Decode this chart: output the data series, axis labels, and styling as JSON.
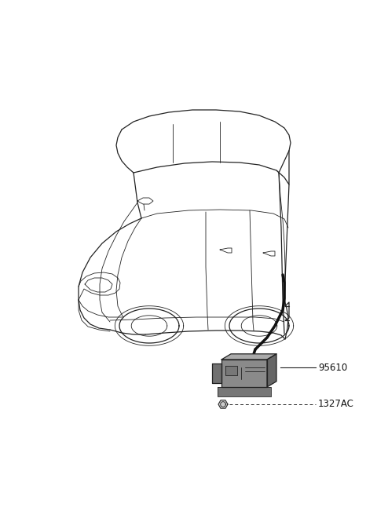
{
  "background_color": "#ffffff",
  "fig_width": 4.8,
  "fig_height": 6.56,
  "dpi": 100,
  "car_color": "#222222",
  "module_fill_front": "#888888",
  "module_fill_top": "#aaaaaa",
  "module_fill_side": "#666666",
  "module_bracket_fill": "#777777",
  "text_color": "#111111",
  "label_95610": "95610",
  "label_1327AC": "1327AC",
  "label_font_size": 8.5,
  "lw_main": 0.9,
  "lw_thin": 0.6,
  "lw_thick": 1.3
}
